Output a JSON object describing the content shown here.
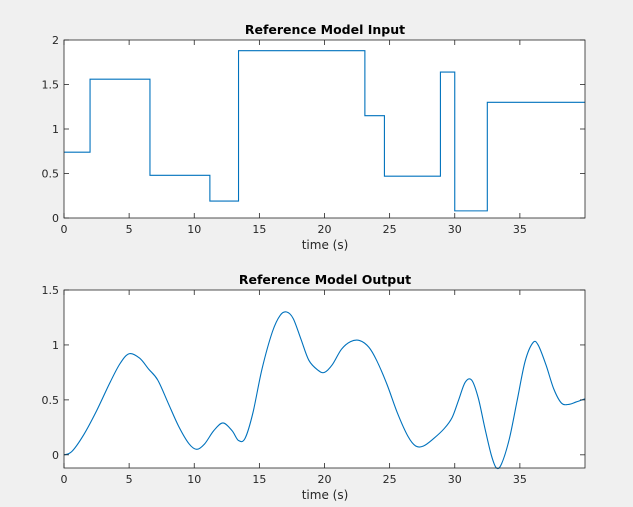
{
  "colors": {
    "figure_background": "#f0f0f0",
    "axes_background": "#ffffff",
    "axis_color": "#262626",
    "series_color": "#0072bd"
  },
  "chart_data": [
    {
      "type": "line",
      "title": "Reference Model Input",
      "xlabel": "time (s)",
      "ylabel": "",
      "xlim": [
        0,
        40
      ],
      "ylim": [
        0,
        2
      ],
      "xticks": [
        0,
        5,
        10,
        15,
        20,
        25,
        30,
        35
      ],
      "xtick_labels": [
        "0",
        "5",
        "10",
        "15",
        "20",
        "25",
        "30",
        "35"
      ],
      "yticks": [
        0,
        0.5,
        1,
        1.5,
        2
      ],
      "ytick_labels": [
        "0",
        "0.5",
        "1",
        "1.5",
        "2"
      ],
      "grid": false,
      "step": true,
      "series": [
        {
          "x": [
            0,
            2.0,
            2.0,
            6.6,
            6.6,
            11.2,
            11.2,
            13.4,
            13.4,
            23.1,
            23.1,
            24.6,
            24.6,
            28.9,
            28.9,
            30.0,
            30.0,
            32.5,
            32.5,
            40
          ],
          "y": [
            0.74,
            0.74,
            1.56,
            1.56,
            0.48,
            0.48,
            0.19,
            0.19,
            1.88,
            1.88,
            1.15,
            1.15,
            0.47,
            0.47,
            1.64,
            1.64,
            0.08,
            0.08,
            1.3,
            1.3
          ]
        }
      ]
    },
    {
      "type": "line",
      "title": "Reference Model Output",
      "xlabel": "time (s)",
      "ylabel": "",
      "xlim": [
        0,
        40
      ],
      "ylim": [
        -0.12,
        1.5
      ],
      "xticks": [
        0,
        5,
        10,
        15,
        20,
        25,
        30,
        35
      ],
      "xtick_labels": [
        "0",
        "5",
        "10",
        "15",
        "20",
        "25",
        "30",
        "35"
      ],
      "yticks": [
        0,
        0.5,
        1,
        1.5
      ],
      "ytick_labels": [
        "0",
        "0.5",
        "1",
        "1.5"
      ],
      "grid": false,
      "smooth": true,
      "series": [
        {
          "x": [
            0,
            0.6,
            1.5,
            2.5,
            3.5,
            4.3,
            5.0,
            5.8,
            6.5,
            7.2,
            8.0,
            8.8,
            9.6,
            10.2,
            10.8,
            11.5,
            12.2,
            12.9,
            13.4,
            13.9,
            14.5,
            15.2,
            16.0,
            16.6,
            17.1,
            17.6,
            18.2,
            18.8,
            19.5,
            20.0,
            20.6,
            21.3,
            22.0,
            22.7,
            23.4,
            24.0,
            24.8,
            25.6,
            26.4,
            27.0,
            27.6,
            28.4,
            29.2,
            29.8,
            30.3,
            30.8,
            31.3,
            31.8,
            32.3,
            32.8,
            33.2,
            33.6,
            34.2,
            34.8,
            35.4,
            36.0,
            36.4,
            37.0,
            37.6,
            38.2,
            38.8,
            39.3,
            40
          ],
          "y": [
            0.0,
            0.03,
            0.18,
            0.4,
            0.65,
            0.83,
            0.92,
            0.88,
            0.78,
            0.68,
            0.47,
            0.26,
            0.1,
            0.05,
            0.1,
            0.22,
            0.29,
            0.22,
            0.13,
            0.15,
            0.38,
            0.78,
            1.12,
            1.27,
            1.3,
            1.24,
            1.05,
            0.86,
            0.77,
            0.75,
            0.82,
            0.96,
            1.03,
            1.04,
            0.98,
            0.86,
            0.64,
            0.38,
            0.17,
            0.08,
            0.08,
            0.15,
            0.24,
            0.34,
            0.5,
            0.66,
            0.68,
            0.52,
            0.25,
            0.0,
            -0.12,
            -0.08,
            0.15,
            0.5,
            0.85,
            1.02,
            1.0,
            0.82,
            0.6,
            0.47,
            0.46,
            0.48,
            0.51
          ]
        }
      ]
    }
  ]
}
